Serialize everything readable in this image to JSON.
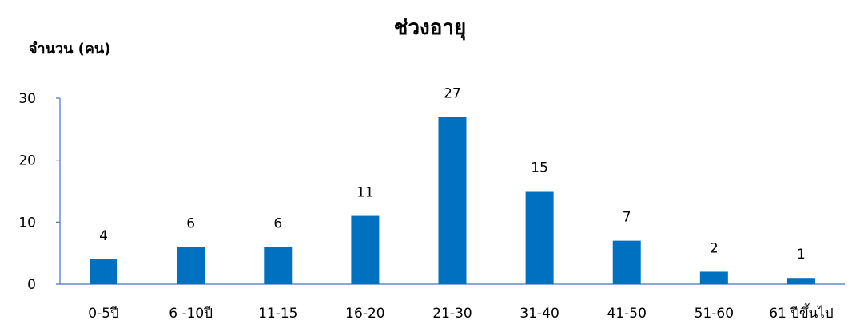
{
  "chart_data": {
    "type": "bar",
    "title": "ช่วงอายุ",
    "ylabel": "จำนวน (คน)",
    "xlabel": "",
    "categories": [
      "0-5ปี",
      "6 -10ปี",
      "11-15",
      "16-20",
      "21-30",
      "31-40",
      "41-50",
      "51-60",
      "61 ปีขึ้นไป"
    ],
    "values": [
      4,
      6,
      6,
      11,
      27,
      15,
      7,
      2,
      1
    ],
    "ylim": [
      0,
      30
    ],
    "yticks": [
      0,
      10,
      20,
      30
    ],
    "grid": false,
    "legend": "none",
    "data_labels": true,
    "bar_color": "#0070C0",
    "axis_color": "#4472C4"
  }
}
